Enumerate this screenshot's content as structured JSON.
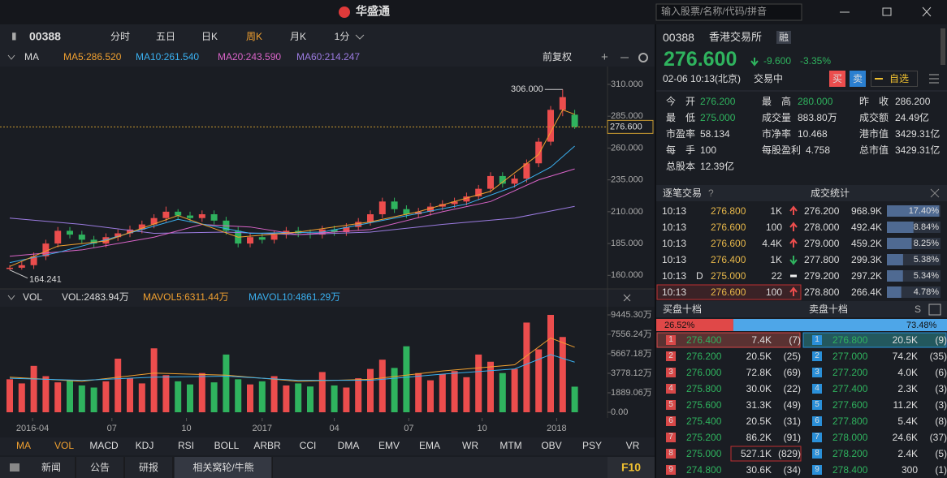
{
  "titlebar": {
    "app": "华盛通",
    "search_placeholder": "输入股票/名称/代码/拼音"
  },
  "toolbar": {
    "code": "00388",
    "periods": [
      "分时",
      "五日",
      "日K",
      "周K",
      "月K",
      "1分"
    ],
    "selected": 3
  },
  "chart": {
    "header": {
      "name": "MA",
      "items": [
        {
          "label": "MA5:286.520",
          "color": "#f0a030"
        },
        {
          "label": "MA10:261.540",
          "color": "#3ab0f0"
        },
        {
          "label": "MA20:243.590",
          "color": "#d964c8"
        },
        {
          "label": "MA60:214.247",
          "color": "#9b7be0"
        }
      ],
      "adjust": "前复权"
    },
    "up_color": "#ec4d4d",
    "down_color": "#2fb35e",
    "open": [
      165,
      166,
      168,
      175,
      185,
      195,
      192,
      188,
      185,
      190,
      193,
      196,
      200,
      205,
      210,
      207,
      205,
      208,
      203,
      195,
      185,
      190,
      188,
      192,
      195,
      193,
      192,
      196,
      194,
      198,
      202,
      208,
      218,
      212,
      208,
      210,
      214,
      216,
      218,
      222,
      228,
      238,
      232,
      236,
      248,
      265,
      290,
      286.2
    ],
    "high": [
      168,
      171,
      178,
      188,
      198,
      198,
      195,
      191,
      193,
      196,
      199,
      203,
      208,
      214,
      212,
      210,
      211,
      211,
      206,
      198,
      193,
      193,
      195,
      198,
      198,
      196,
      199,
      199,
      201,
      205,
      211,
      221,
      221,
      215,
      213,
      217,
      219,
      221,
      225,
      231,
      241,
      241,
      239,
      251,
      268,
      293,
      306,
      290
    ],
    "low": [
      164.241,
      164.5,
      165,
      172,
      182,
      189,
      185,
      182,
      182,
      187,
      190,
      193,
      197,
      202,
      204,
      202,
      202,
      200,
      192,
      182,
      182,
      185,
      185,
      189,
      190,
      189,
      189,
      191,
      191,
      195,
      199,
      205,
      209,
      205,
      205,
      207,
      211,
      213,
      215,
      219,
      225,
      229,
      229,
      233,
      245,
      262,
      285,
      275
    ],
    "close": [
      166,
      168,
      175,
      185,
      195,
      192,
      188,
      185,
      190,
      193,
      196,
      200,
      205,
      210,
      207,
      205,
      208,
      203,
      195,
      185,
      190,
      188,
      192,
      195,
      193,
      192,
      196,
      194,
      198,
      202,
      208,
      218,
      212,
      208,
      210,
      214,
      216,
      218,
      222,
      228,
      238,
      232,
      236,
      248,
      265,
      290,
      300,
      276.6
    ],
    "ma_lines": [
      {
        "color": "#9b7be0",
        "x": [
          0,
          6,
          12,
          18,
          24,
          30,
          36,
          42,
          47
        ],
        "values": [
          205,
          200,
          193,
          194,
          192,
          194,
          200,
          205,
          214.2
        ]
      },
      {
        "color": "#d964c8",
        "x": [
          0,
          6,
          12,
          16,
          20,
          24,
          30,
          36,
          40,
          44,
          47
        ],
        "values": [
          175,
          180,
          190,
          200,
          198,
          192,
          196,
          210,
          218,
          235,
          243.6
        ]
      },
      {
        "color": "#3ab0f0",
        "x": [
          0,
          4,
          8,
          14,
          20,
          26,
          32,
          38,
          42,
          45,
          47
        ],
        "values": [
          170,
          178,
          188,
          204,
          193,
          194,
          205,
          216,
          230,
          245,
          261.5
        ]
      },
      {
        "color": "#f0a030",
        "x": [
          0,
          4,
          8,
          14,
          19,
          24,
          30,
          34,
          40,
          44,
          46,
          47
        ],
        "values": [
          167,
          183,
          187,
          207,
          190,
          194,
          202,
          210,
          226,
          255,
          290,
          286.5
        ]
      }
    ],
    "ylim": [
      150,
      324
    ],
    "yticks": [
      {
        "value": 310,
        "label": "310.000"
      },
      {
        "value": 285,
        "label": "285.000"
      },
      {
        "value": 260,
        "label": "260.000"
      },
      {
        "value": 235,
        "label": "235.000"
      },
      {
        "value": 210,
        "label": "210.000"
      },
      {
        "value": 185,
        "label": "185.000"
      },
      {
        "value": 160,
        "label": "160.000"
      }
    ],
    "current_price": {
      "value": 276.6,
      "label": "276.600"
    },
    "high_marker": {
      "index": 46,
      "value": 306,
      "label": "306.000"
    },
    "low_marker": {
      "index": 0,
      "value": 164.241,
      "label": "164.241"
    },
    "xticks": [
      {
        "value": 1.9,
        "label": "2016-04"
      },
      {
        "value": 8.5,
        "label": "07"
      },
      {
        "value": 14.7,
        "label": "10"
      },
      {
        "value": 21,
        "label": "2017"
      },
      {
        "value": 27,
        "label": "04"
      },
      {
        "value": 33.2,
        "label": "07"
      },
      {
        "value": 39.3,
        "label": "10"
      },
      {
        "value": 45.5,
        "label": "2018"
      }
    ],
    "volume": {
      "header": {
        "name": "VOL",
        "items": [
          {
            "label": "VOL:2483.94万",
            "color": "#dddddd"
          },
          {
            "label": "MAVOL5:6311.44万",
            "color": "#f0a030"
          },
          {
            "label": "MAVOL10:4861.29万",
            "color": "#3ab0f0"
          }
        ]
      },
      "values": [
        3200,
        2800,
        4500,
        3500,
        2900,
        3100,
        2600,
        2400,
        3000,
        5200,
        3300,
        2800,
        6200,
        3600,
        3000,
        2700,
        3800,
        2900,
        5600,
        3200,
        2700,
        3000,
        3500,
        2600,
        2800,
        2500,
        3900,
        2600,
        2400,
        3300,
        4200,
        5100,
        4300,
        6400,
        3800,
        3100,
        3700,
        4000,
        3400,
        5600,
        4900,
        3800,
        4200,
        8700,
        6100,
        9445.3,
        7300,
        2483.94
      ],
      "ma_lines": [
        {
          "color": "#f0a030",
          "x": [
            0,
            6,
            12,
            18,
            24,
            30,
            36,
            42,
            45,
            47
          ],
          "values": [
            3400,
            3000,
            3800,
            3600,
            3000,
            3200,
            4000,
            4600,
            7200,
            6311.44
          ]
        },
        {
          "color": "#3ab0f0",
          "x": [
            0,
            6,
            12,
            18,
            24,
            30,
            36,
            42,
            45,
            47
          ],
          "values": [
            3300,
            3100,
            3400,
            3500,
            3100,
            3100,
            3700,
            4200,
            5600,
            4861.29
          ]
        }
      ],
      "ylim": [
        0,
        9445.3
      ],
      "yticks": [
        {
          "value": 9445.3,
          "label": "9445.30万"
        },
        {
          "value": 7556.24,
          "label": "7556.24万"
        },
        {
          "value": 5667.18,
          "label": "5667.18万"
        },
        {
          "value": 3778.12,
          "label": "3778.12万"
        },
        {
          "value": 1889.06,
          "label": "1889.06万"
        },
        {
          "value": 0,
          "label": "0.00"
        }
      ]
    },
    "indicators": [
      "MA",
      "VOL",
      "MACD",
      "KDJ",
      "RSI",
      "BOLL",
      "ARBR",
      "CCI",
      "DMA",
      "EMV",
      "EMA",
      "WR",
      "MTM",
      "OBV",
      "PSY",
      "VR"
    ],
    "active_indicators": [
      0,
      1
    ]
  },
  "tabs": [
    "新闻",
    "公告",
    "研报",
    "相关窝轮/牛熊"
  ],
  "selected_tab": 3,
  "f10": "F10",
  "quote": {
    "code": "00388",
    "name": "香港交易所",
    "margin": "融",
    "price": "276.600",
    "change": "-9.600",
    "pct": "-3.35%",
    "time": "02-06 10:13(北京)",
    "status": "交易中",
    "buy": "买",
    "sell": "卖",
    "watch": "自选",
    "stats": [
      [
        {
          "label": "今　开",
          "value": "276.200",
          "color": "#2fb35e"
        },
        {
          "label": "最　高",
          "value": "280.000",
          "color": "#2fb35e"
        },
        {
          "label": "昨　收",
          "value": "286.200",
          "color": "#dddddd"
        }
      ],
      [
        {
          "label": "最　低",
          "value": "275.000",
          "color": "#2fb35e"
        },
        {
          "label": "成交量",
          "value": "883.80万",
          "color": "#dddddd"
        },
        {
          "label": "成交额",
          "value": "24.49亿",
          "color": "#dddddd"
        }
      ],
      [
        {
          "label": "市盈率",
          "value": "58.134",
          "color": "#dddddd"
        },
        {
          "label": "市净率",
          "value": "10.468",
          "color": "#dddddd"
        },
        {
          "label": "港市值",
          "value": "3429.31亿",
          "color": "#dddddd"
        }
      ],
      [
        {
          "label": "每　手",
          "value": "100",
          "color": "#dddddd"
        },
        {
          "label": "每股盈利",
          "value": "4.758",
          "color": "#dddddd"
        },
        {
          "label": "总市值",
          "value": "3429.31亿",
          "color": "#dddddd"
        }
      ],
      [
        {
          "label": "总股本",
          "value": "12.39亿",
          "color": "#dddddd"
        }
      ]
    ]
  },
  "trades_title": "逐笔交易",
  "stats_title": "成交统计",
  "trades": [
    {
      "time": "10:13",
      "price": "276.800",
      "qty": "1K",
      "dir": "up"
    },
    {
      "time": "10:13",
      "price": "276.600",
      "qty": "100",
      "dir": "up"
    },
    {
      "time": "10:13",
      "price": "276.600",
      "qty": "4.4K",
      "dir": "up"
    },
    {
      "time": "10:13",
      "price": "276.400",
      "qty": "1K",
      "dir": "down"
    },
    {
      "time": "10:13",
      "flag": "D",
      "price": "275.000",
      "qty": "22",
      "dir": "flat"
    },
    {
      "time": "10:13",
      "price": "276.600",
      "qty": "100",
      "dir": "up"
    }
  ],
  "volume_stats": [
    {
      "price": "276.200",
      "vol": "968.9K",
      "pct": {
        "value": 17.4,
        "label": "17.40%"
      }
    },
    {
      "price": "278.000",
      "vol": "492.4K",
      "pct": {
        "value": 8.84,
        "label": "8.84%"
      }
    },
    {
      "price": "279.000",
      "vol": "459.2K",
      "pct": {
        "value": 8.25,
        "label": "8.25%"
      }
    },
    {
      "price": "277.800",
      "vol": "299.3K",
      "pct": {
        "value": 5.38,
        "label": "5.38%"
      }
    },
    {
      "price": "279.200",
      "vol": "297.2K",
      "pct": {
        "value": 5.34,
        "label": "5.34%"
      }
    },
    {
      "price": "278.800",
      "vol": "266.4K",
      "pct": {
        "value": 4.78,
        "label": "4.78%"
      }
    }
  ],
  "book": {
    "bid_title": "买盘十档",
    "ask_title": "卖盘十档",
    "bid_ratio": {
      "value": 26.52,
      "label": "26.52%"
    },
    "ask_ratio": {
      "value": 73.48,
      "label": "73.48%"
    },
    "bids": [
      [
        "1",
        "276.400",
        "7.4K",
        "(7)"
      ],
      [
        "2",
        "276.200",
        "20.5K",
        "(25)"
      ],
      [
        "3",
        "276.000",
        "72.8K",
        "(69)"
      ],
      [
        "4",
        "275.800",
        "30.0K",
        "(22)"
      ],
      [
        "5",
        "275.600",
        "31.3K",
        "(49)"
      ],
      [
        "6",
        "275.400",
        "20.5K",
        "(31)"
      ],
      [
        "7",
        "275.200",
        "86.2K",
        "(91)"
      ],
      [
        "8",
        "275.000",
        "527.1K",
        "(829)"
      ],
      [
        "9",
        "274.800",
        "30.6K",
        "(34)"
      ]
    ],
    "asks": [
      [
        "1",
        "276.800",
        "20.5K",
        "(9)"
      ],
      [
        "2",
        "277.000",
        "74.2K",
        "(35)"
      ],
      [
        "3",
        "277.200",
        "4.0K",
        "(6)"
      ],
      [
        "4",
        "277.400",
        "2.3K",
        "(3)"
      ],
      [
        "5",
        "277.600",
        "11.2K",
        "(3)"
      ],
      [
        "6",
        "277.800",
        "5.4K",
        "(8)"
      ],
      [
        "7",
        "278.000",
        "24.6K",
        "(37)"
      ],
      [
        "8",
        "278.200",
        "2.4K",
        "(5)"
      ],
      [
        "9",
        "278.400",
        "300",
        "(1)"
      ]
    ]
  }
}
